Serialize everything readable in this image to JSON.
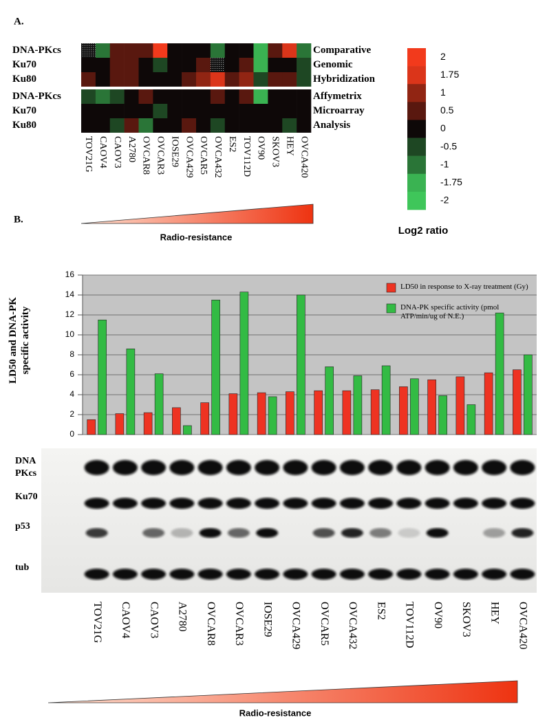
{
  "panels": {
    "a": "A.",
    "b": "B."
  },
  "chart_data": [
    {
      "type": "heatmap",
      "rows": [
        "DNA-PKcs",
        "Ku70",
        "Ku80",
        "DNA-PKcs",
        "Ku70",
        "Ku80"
      ],
      "row_groups": [
        "Comparative",
        "Genomic",
        "Hybridization",
        "Affymetrix",
        "Microarray",
        "Analysis"
      ],
      "categories": [
        "TOV21G",
        "CAOV4",
        "CAOV3",
        "A2780",
        "OVCAR8",
        "OVCAR3",
        "IOSE29",
        "OVCA429",
        "OVCAR5",
        "OVCA432",
        "ES2",
        "TOV112D",
        "OV90",
        "SKOV3",
        "HEY",
        "OVCA420"
      ],
      "values": [
        [
          null,
          -1,
          0.5,
          0.5,
          0.5,
          2,
          0,
          0,
          0,
          -1,
          0,
          0,
          -1.75,
          0.5,
          1.75,
          -1
        ],
        [
          0,
          0,
          0.5,
          0.5,
          0,
          -0.5,
          0,
          0,
          0.5,
          null,
          0,
          0.5,
          -1.75,
          0,
          0,
          -0.5
        ],
        [
          0.5,
          0,
          0.5,
          0.5,
          0,
          0,
          0,
          0.5,
          1,
          1.75,
          0.5,
          1,
          -0.5,
          0.5,
          0.5,
          -0.5
        ],
        [
          -0.5,
          -1,
          -0.5,
          0,
          0.5,
          0,
          0,
          0,
          0,
          0.5,
          0,
          0.5,
          -1.75,
          0,
          0,
          0
        ],
        [
          0,
          0,
          0,
          0,
          0,
          -0.5,
          0,
          0,
          0,
          0,
          0,
          0,
          0,
          0,
          0,
          0
        ],
        [
          0,
          0,
          -0.5,
          0.5,
          -1,
          0,
          0,
          0.5,
          0,
          -0.5,
          0,
          0,
          0,
          0,
          -0.5,
          0
        ]
      ],
      "clim": [
        -2,
        2
      ],
      "colorbar": {
        "label": "Log2 ratio",
        "ticks": [
          2,
          1.75,
          1,
          0.5,
          0,
          -0.5,
          -1,
          -1.75,
          -2
        ]
      },
      "positive_color": "#f23a1c",
      "negative_color": "#3fc65a",
      "gradient_label": "Radio-resistance"
    },
    {
      "type": "bar",
      "y_label": "LD50 and DNA-PK specific activity",
      "categories": [
        "TOV21G",
        "CAOV4",
        "CAOV3",
        "A2780",
        "OVCAR8",
        "OVCAR3",
        "IOSE29",
        "OVCA429",
        "OVCAR5",
        "OVCA432",
        "ES2",
        "TOV112D",
        "OV90",
        "SKOV3",
        "HEY",
        "OVCA420"
      ],
      "series": [
        {
          "name": "LD50 in response to X-ray treatment (Gy)",
          "color": "#ee3322",
          "values": [
            1.5,
            2.1,
            2.2,
            2.7,
            3.2,
            4.1,
            4.2,
            4.3,
            4.4,
            4.4,
            4.5,
            4.8,
            5.5,
            5.8,
            6.2,
            6.5
          ]
        },
        {
          "name": "DNA-PK specific activity (pmol ATP/min/ug of N.E.)",
          "color": "#33bb44",
          "values": [
            11.5,
            8.6,
            6.1,
            0.9,
            13.5,
            14.3,
            3.8,
            14,
            6.8,
            5.9,
            6.9,
            5.6,
            3.9,
            3.0,
            12.2,
            8.0
          ]
        }
      ],
      "ylim": [
        0,
        16
      ],
      "yticks": [
        0,
        2,
        4,
        6,
        8,
        10,
        12,
        14,
        16
      ],
      "grid": true,
      "legend": "top-right"
    }
  ],
  "blot": {
    "rows": [
      "DNA PKcs",
      "Ku70",
      "p53",
      "tub"
    ],
    "lanes": [
      "TOV21G",
      "CAOV4",
      "CAOV3",
      "A2780",
      "OVCAR8",
      "OVCAR3",
      "IOSE29",
      "OVCA429",
      "OVCAR5",
      "OVCA432",
      "ES2",
      "TOV112D",
      "OV90",
      "SKOV3",
      "HEY",
      "OVCA420"
    ],
    "gradient_label": "Radio-resistance"
  }
}
